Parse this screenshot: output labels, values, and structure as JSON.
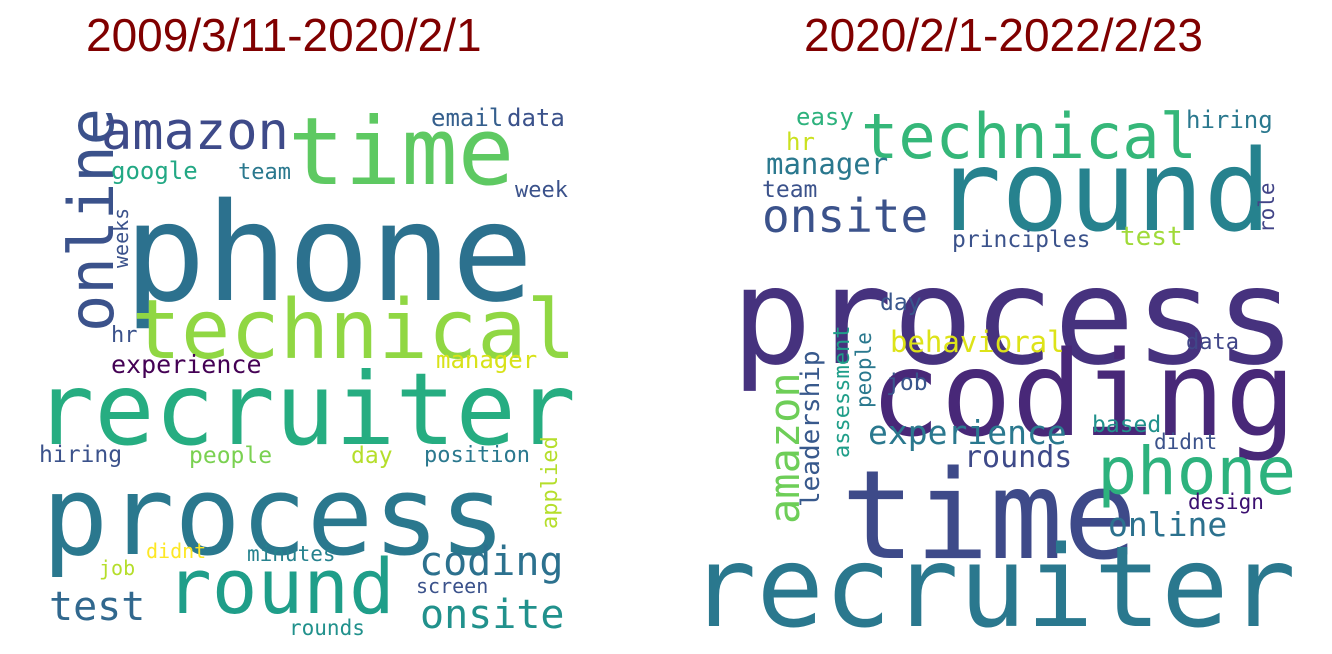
{
  "panels": [
    {
      "title": "2009/3/11-2020/2/1",
      "words": [
        {
          "text": "phone",
          "color": "#2c718e"
        },
        {
          "text": "recruiter",
          "color": "#26ad81"
        },
        {
          "text": "process",
          "color": "#2a788e"
        },
        {
          "text": "time",
          "color": "#5ec962"
        },
        {
          "text": "technical",
          "color": "#90d743"
        },
        {
          "text": "online",
          "color": "#3b528b"
        },
        {
          "text": "amazon",
          "color": "#3e4a89"
        },
        {
          "text": "round",
          "color": "#1f9e89"
        },
        {
          "text": "coding",
          "color": "#2c718e"
        },
        {
          "text": "onsite",
          "color": "#21918c"
        },
        {
          "text": "test",
          "color": "#31688e"
        },
        {
          "text": "experience",
          "color": "#440154"
        },
        {
          "text": "google",
          "color": "#22a884"
        },
        {
          "text": "team",
          "color": "#2a788e"
        },
        {
          "text": "email",
          "color": "#355f8d"
        },
        {
          "text": "data",
          "color": "#3b528b"
        },
        {
          "text": "week",
          "color": "#3b528b"
        },
        {
          "text": "weeks",
          "color": "#3b528b"
        },
        {
          "text": "hr",
          "color": "#3b528b"
        },
        {
          "text": "manager",
          "color": "#d8e219"
        },
        {
          "text": "hiring",
          "color": "#3b528b"
        },
        {
          "text": "people",
          "color": "#7ad151"
        },
        {
          "text": "day",
          "color": "#b5de2b"
        },
        {
          "text": "position",
          "color": "#2a788e"
        },
        {
          "text": "applied",
          "color": "#b5de2b"
        },
        {
          "text": "didnt",
          "color": "#fde725"
        },
        {
          "text": "job",
          "color": "#b5de2b"
        },
        {
          "text": "minutes",
          "color": "#26828e"
        },
        {
          "text": "screen",
          "color": "#3b528b"
        },
        {
          "text": "rounds",
          "color": "#21918c"
        }
      ]
    },
    {
      "title": "2020/2/1-2022/2/23",
      "words": [
        {
          "text": "process",
          "color": "#46327e"
        },
        {
          "text": "coding",
          "color": "#482878"
        },
        {
          "text": "time",
          "color": "#3e4a89"
        },
        {
          "text": "recruiter",
          "color": "#2a788e"
        },
        {
          "text": "round",
          "color": "#26828e"
        },
        {
          "text": "technical",
          "color": "#35b779"
        },
        {
          "text": "phone",
          "color": "#2db27d"
        },
        {
          "text": "onsite",
          "color": "#3b528b"
        },
        {
          "text": "amazon",
          "color": "#6ece58"
        },
        {
          "text": "experience",
          "color": "#2a788e"
        },
        {
          "text": "online",
          "color": "#2c718e"
        },
        {
          "text": "rounds",
          "color": "#3e4a89"
        },
        {
          "text": "leadership",
          "color": "#38598c"
        },
        {
          "text": "behavioral",
          "color": "#dde318"
        },
        {
          "text": "manager",
          "color": "#2a788e"
        },
        {
          "text": "principles",
          "color": "#3b528b"
        },
        {
          "text": "test",
          "color": "#a0da39"
        },
        {
          "text": "easy",
          "color": "#2db27d"
        },
        {
          "text": "hr",
          "color": "#cae11f"
        },
        {
          "text": "team",
          "color": "#3b528b"
        },
        {
          "text": "hiring",
          "color": "#2a788e"
        },
        {
          "text": "role",
          "color": "#414487"
        },
        {
          "text": "day",
          "color": "#39568c"
        },
        {
          "text": "job",
          "color": "#39568c"
        },
        {
          "text": "assessment",
          "color": "#1f9e89"
        },
        {
          "text": "people",
          "color": "#2a788e"
        },
        {
          "text": "data",
          "color": "#404688"
        },
        {
          "text": "based",
          "color": "#21918c"
        },
        {
          "text": "didnt",
          "color": "#3b528b"
        },
        {
          "text": "design",
          "color": "#3b0f70"
        }
      ]
    }
  ]
}
